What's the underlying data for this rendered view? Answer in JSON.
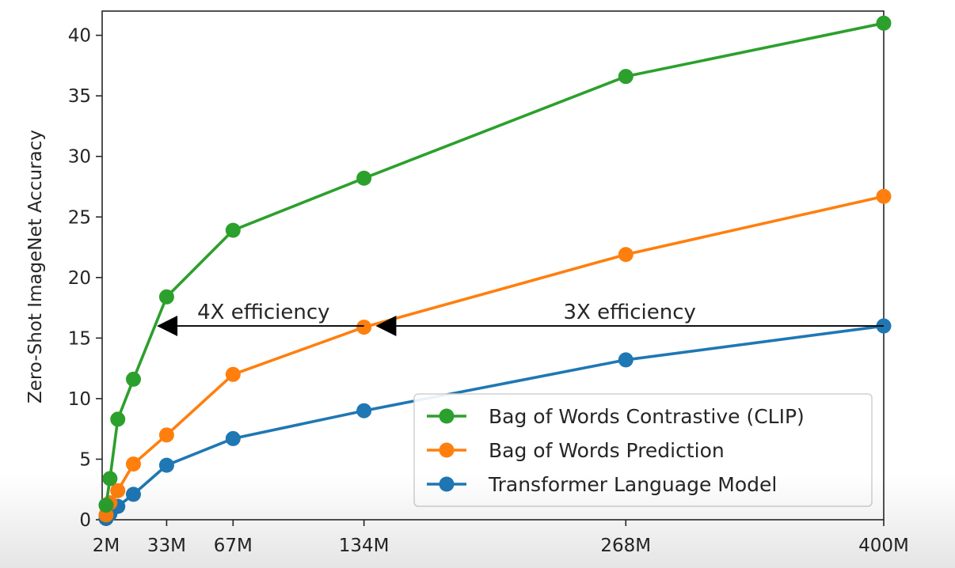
{
  "chart_data": {
    "type": "line",
    "ylabel": "Zero-Shot ImageNet Accuracy",
    "ylim": [
      0,
      42
    ],
    "xlim": [
      0,
      400
    ],
    "x_tick_labels": [
      "2M",
      "33M",
      "67M",
      "134M",
      "268M",
      "400M"
    ],
    "x_tick_values": [
      2,
      33,
      67,
      134,
      268,
      400
    ],
    "y_ticks": [
      0,
      5,
      10,
      15,
      20,
      25,
      30,
      35,
      40
    ],
    "grid": false,
    "legend_position": "lower-right",
    "series": [
      {
        "name": "Bag of Words Contrastive (CLIP)",
        "color": "#2ca02c",
        "x": [
          2,
          4,
          8,
          16,
          33,
          67,
          134,
          268,
          400
        ],
        "y": [
          1.2,
          3.4,
          8.3,
          11.6,
          18.4,
          23.9,
          28.2,
          36.6,
          41.0
        ]
      },
      {
        "name": "Bag of Words Prediction",
        "color": "#ff7f0e",
        "x": [
          2,
          4,
          8,
          16,
          33,
          67,
          134,
          268,
          400
        ],
        "y": [
          0.4,
          1.4,
          2.4,
          4.6,
          7.0,
          12.0,
          15.9,
          21.9,
          26.7
        ]
      },
      {
        "name": "Transformer Language Model",
        "color": "#1f77b4",
        "x": [
          2,
          4,
          8,
          16,
          33,
          67,
          134,
          268,
          400
        ],
        "y": [
          0.1,
          0.5,
          1.1,
          2.1,
          4.5,
          6.7,
          9.0,
          13.2,
          16.0
        ]
      }
    ],
    "annotations": [
      {
        "text": "4X efficiency",
        "arrow_from_x": 134,
        "arrow_to_x": 28,
        "y": 16.0
      },
      {
        "text": "3X efficiency",
        "arrow_from_x": 400,
        "arrow_to_x": 140,
        "y": 16.0
      }
    ]
  }
}
